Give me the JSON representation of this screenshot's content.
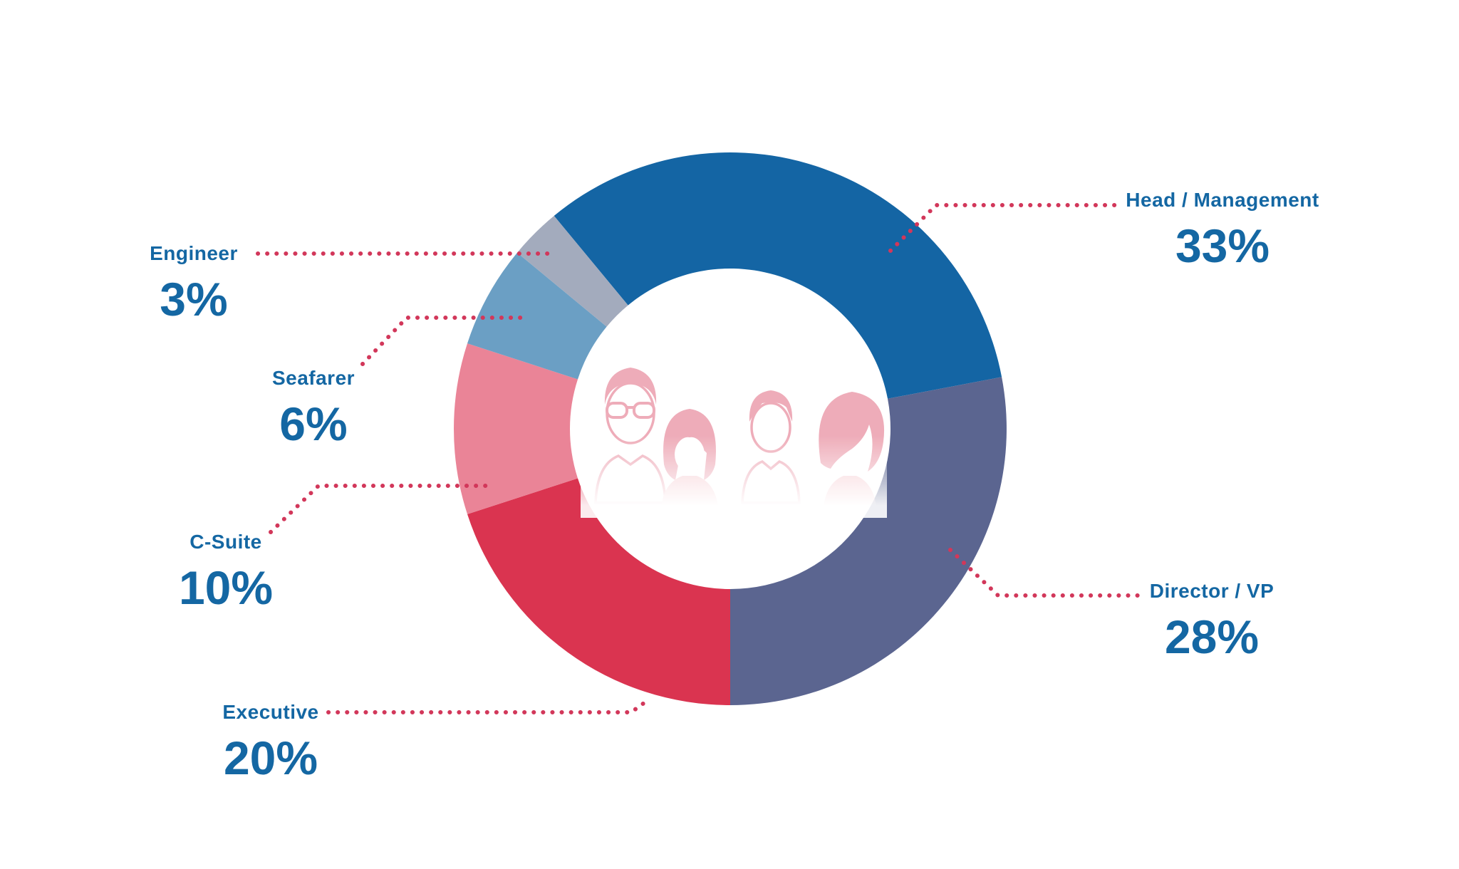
{
  "chart_data": {
    "type": "pie",
    "subtype": "donut",
    "unit": "%",
    "start_angle_deg_clockwise_from_top": -39.6,
    "direction": "clockwise",
    "inner_radius_ratio": 0.58,
    "legend_position": "callouts",
    "categories": [
      "Head / Management",
      "Director / VP",
      "Executive",
      "C-Suite",
      "Seafarer",
      "Engineer"
    ],
    "values": [
      33,
      28,
      20,
      10,
      6,
      3
    ],
    "colors": [
      "#1465a4",
      "#5b6590",
      "#da3450",
      "#ea8497",
      "#6b9fc4",
      "#a3abbd"
    ],
    "callouts": [
      {
        "label": "Head / Management",
        "pct": "33%"
      },
      {
        "label": "Director / VP",
        "pct": "28%"
      },
      {
        "label": "Executive",
        "pct": "20%"
      },
      {
        "label": "C-Suite",
        "pct": "10%"
      },
      {
        "label": "Seafarer",
        "pct": "6%"
      },
      {
        "label": "Engineer",
        "pct": "3%"
      }
    ]
  },
  "styles": {
    "background": "#ffffff",
    "label_color": "#1467a3",
    "leader_line_color": "#d2375a",
    "avatar_pink": "#eda4b2",
    "avatar_pink_soft": "#f6c6cd"
  }
}
